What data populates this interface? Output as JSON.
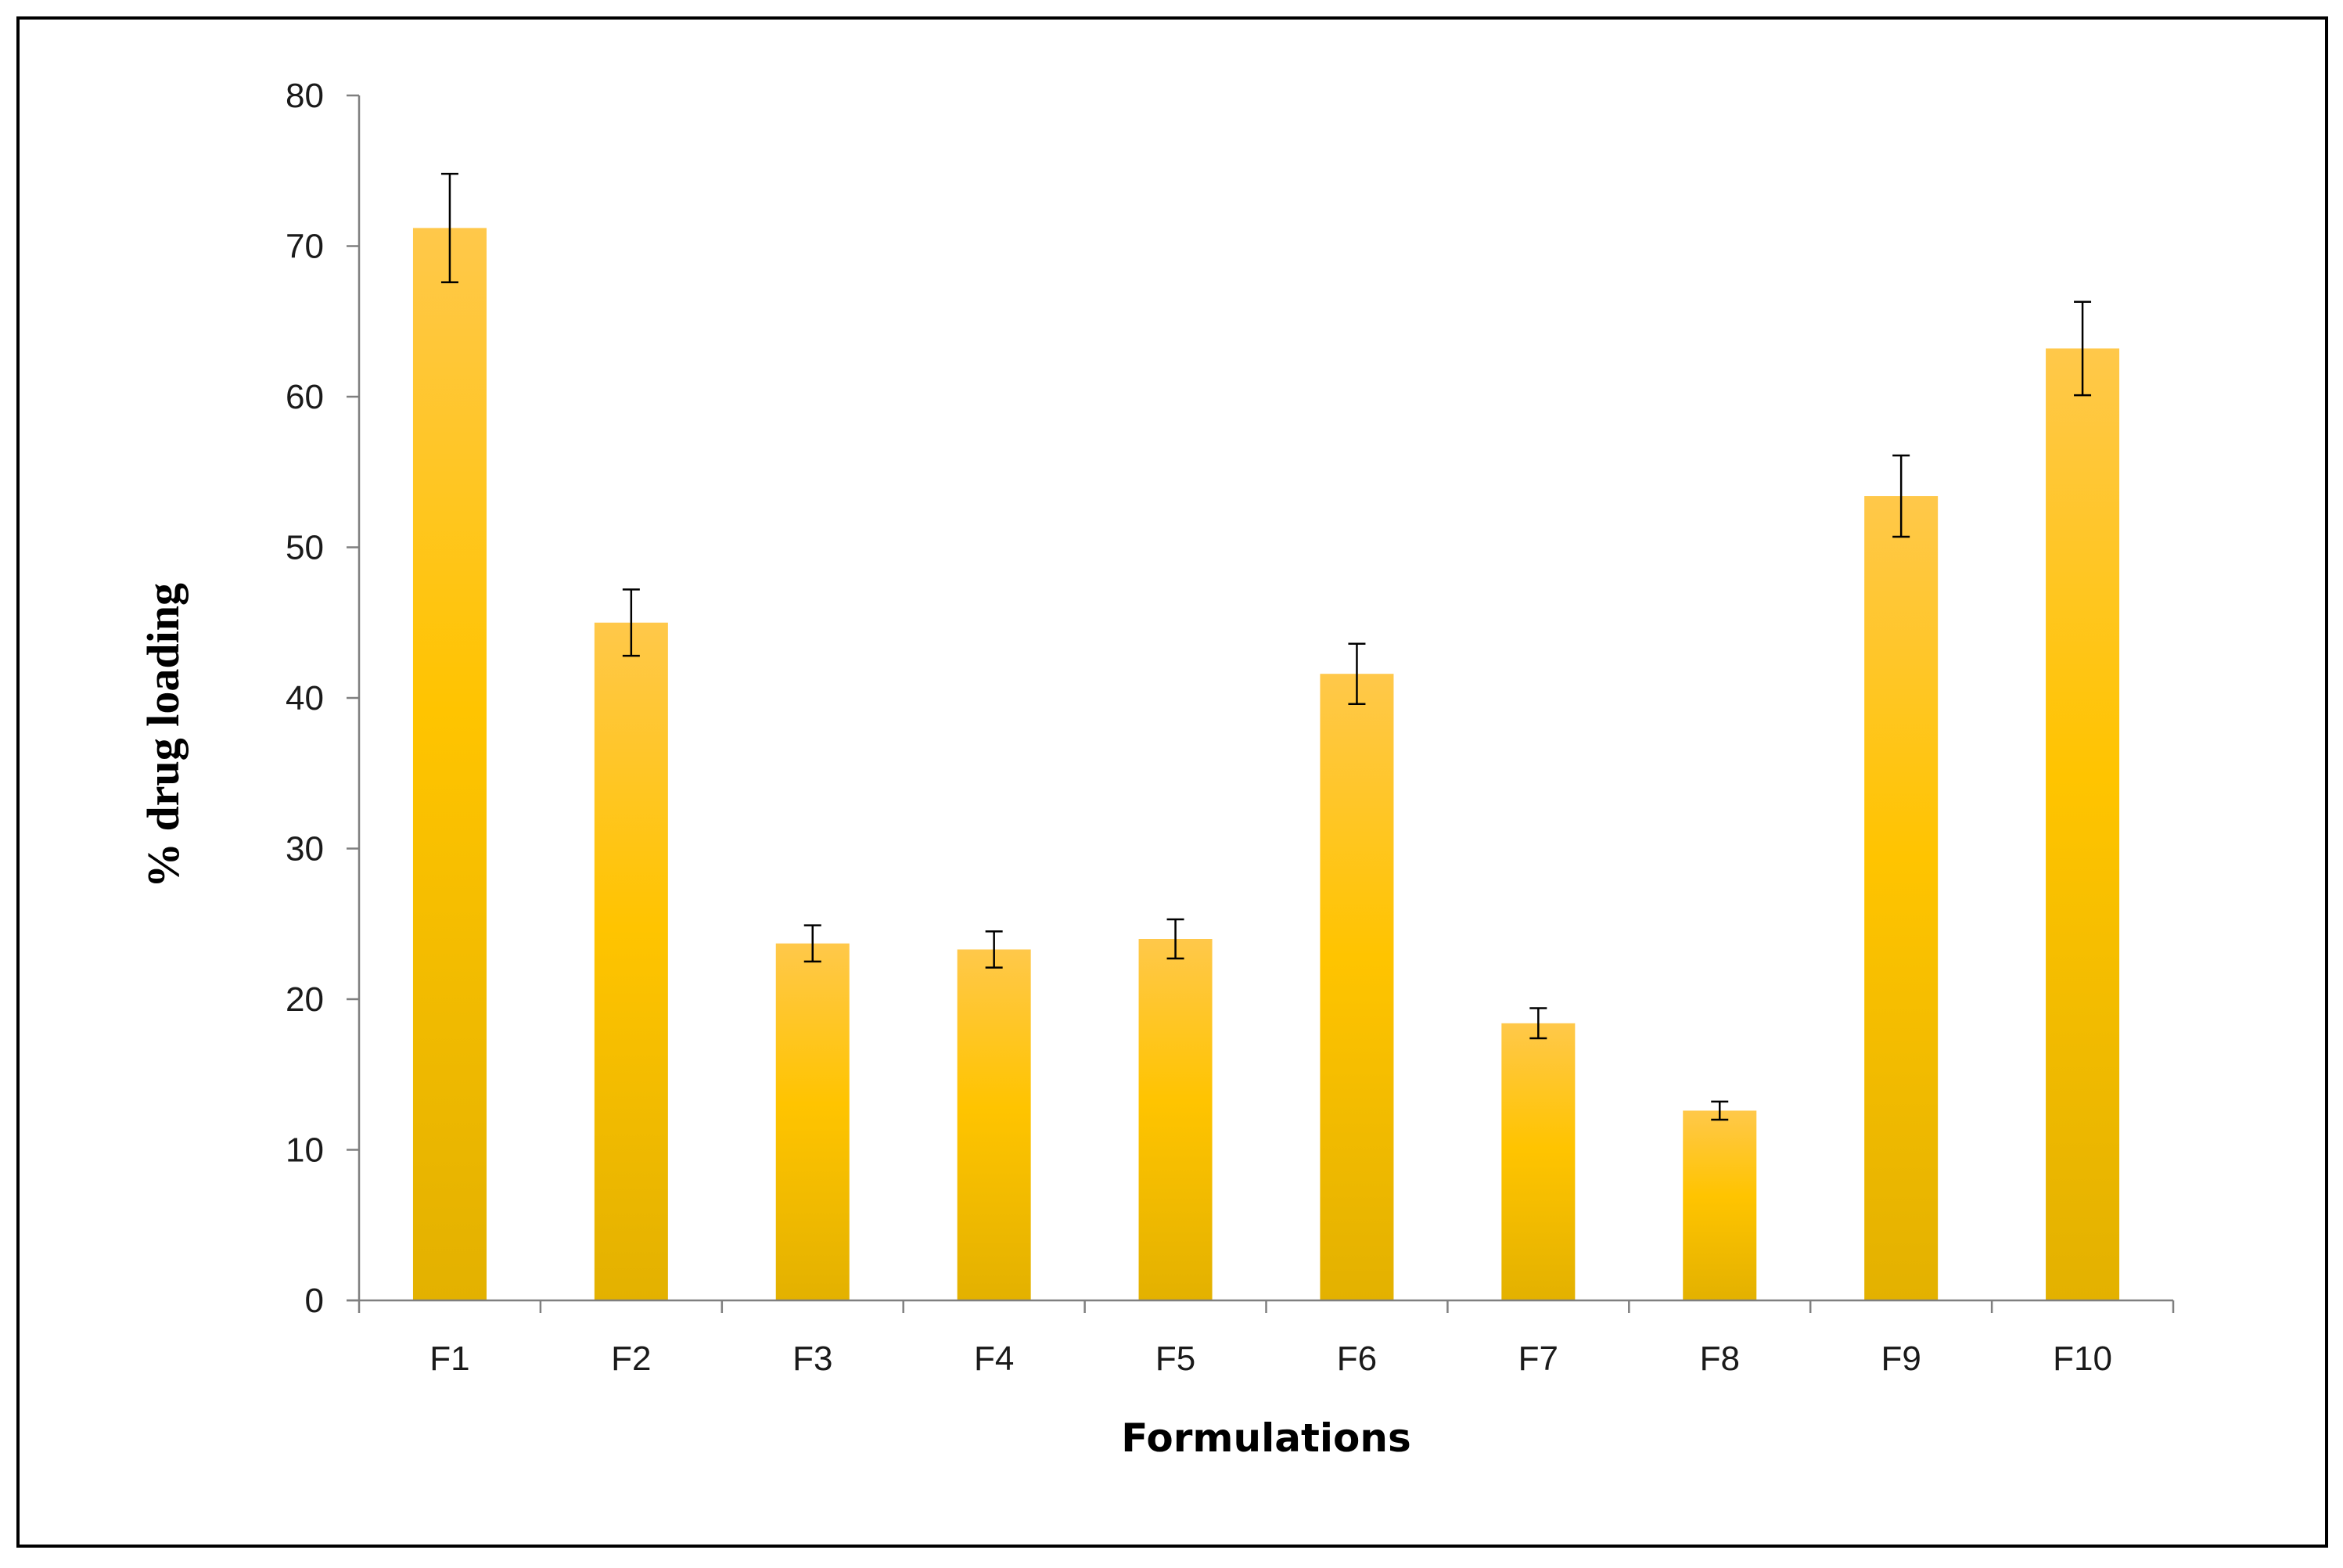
{
  "chart_data": {
    "type": "bar",
    "title": "",
    "xlabel": "Formulations",
    "ylabel": "% drug loading",
    "categories": [
      "F1",
      "F2",
      "F3",
      "F4",
      "F5",
      "F6",
      "F7",
      "F8",
      "F9",
      "F10"
    ],
    "values": [
      71.2,
      45.0,
      23.7,
      23.3,
      24.0,
      41.6,
      18.4,
      12.6,
      53.4,
      63.2
    ],
    "error": [
      3.6,
      2.2,
      1.2,
      1.2,
      1.3,
      2.0,
      1.0,
      0.6,
      2.7,
      3.1
    ],
    "ylim": [
      0,
      80
    ],
    "yticks": [
      "0",
      "10",
      "20",
      "30",
      "40",
      "50",
      "60",
      "70",
      "80"
    ],
    "grid": false,
    "legend": "none",
    "colors": {
      "bar_top": "#ffc84a",
      "bar_mid": "#ffc400",
      "bar_bottom": "#e3b100",
      "axis": "#7f7f7f",
      "error_bar": "#000000"
    }
  }
}
